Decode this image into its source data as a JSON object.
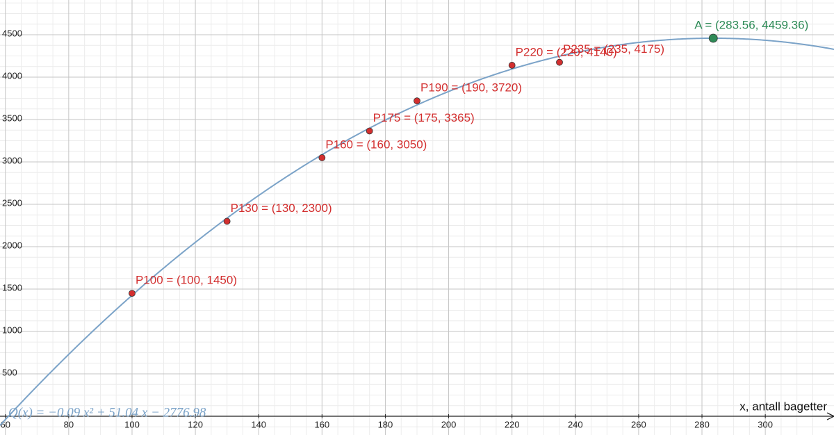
{
  "chart_data": {
    "type": "scatter",
    "xlabel": "x, antall bagetter",
    "xlim": [
      58.3,
      321.7
    ],
    "ylim": [
      -221,
      4910
    ],
    "xticks": [
      60,
      80,
      100,
      120,
      140,
      160,
      180,
      200,
      220,
      240,
      260,
      280,
      300
    ],
    "yticks": [
      500,
      1000,
      1500,
      2000,
      2500,
      3000,
      3500,
      4000,
      4500
    ],
    "grid": true,
    "curve": {
      "label": "Q(x) = −0.09 x² + 51.04 x − 2776.98",
      "coefficients": [
        -0.09,
        51.04,
        -2776.98
      ],
      "color": "#7ba3c8"
    },
    "points": [
      {
        "label": "P100 = (100, 1450)",
        "x": 100,
        "y": 1450,
        "color": "#d32f2f"
      },
      {
        "label": "P130 = (130, 2300)",
        "x": 130,
        "y": 2300,
        "color": "#d32f2f"
      },
      {
        "label": "P160 = (160, 3050)",
        "x": 160,
        "y": 3050,
        "color": "#d32f2f"
      },
      {
        "label": "P175 = (175, 3365)",
        "x": 175,
        "y": 3365,
        "color": "#d32f2f"
      },
      {
        "label": "P190 = (190, 3720)",
        "x": 190,
        "y": 3720,
        "color": "#d32f2f"
      },
      {
        "label": "P220 = (220, 4140)",
        "x": 220,
        "y": 4140,
        "color": "#d32f2f"
      },
      {
        "label": "P235 = (235, 4175)",
        "x": 235,
        "y": 4175,
        "color": "#d32f2f"
      },
      {
        "label": "A = (283.56, 4459.36)",
        "x": 283.56,
        "y": 4459.36,
        "color": "#2e8b57"
      }
    ]
  }
}
